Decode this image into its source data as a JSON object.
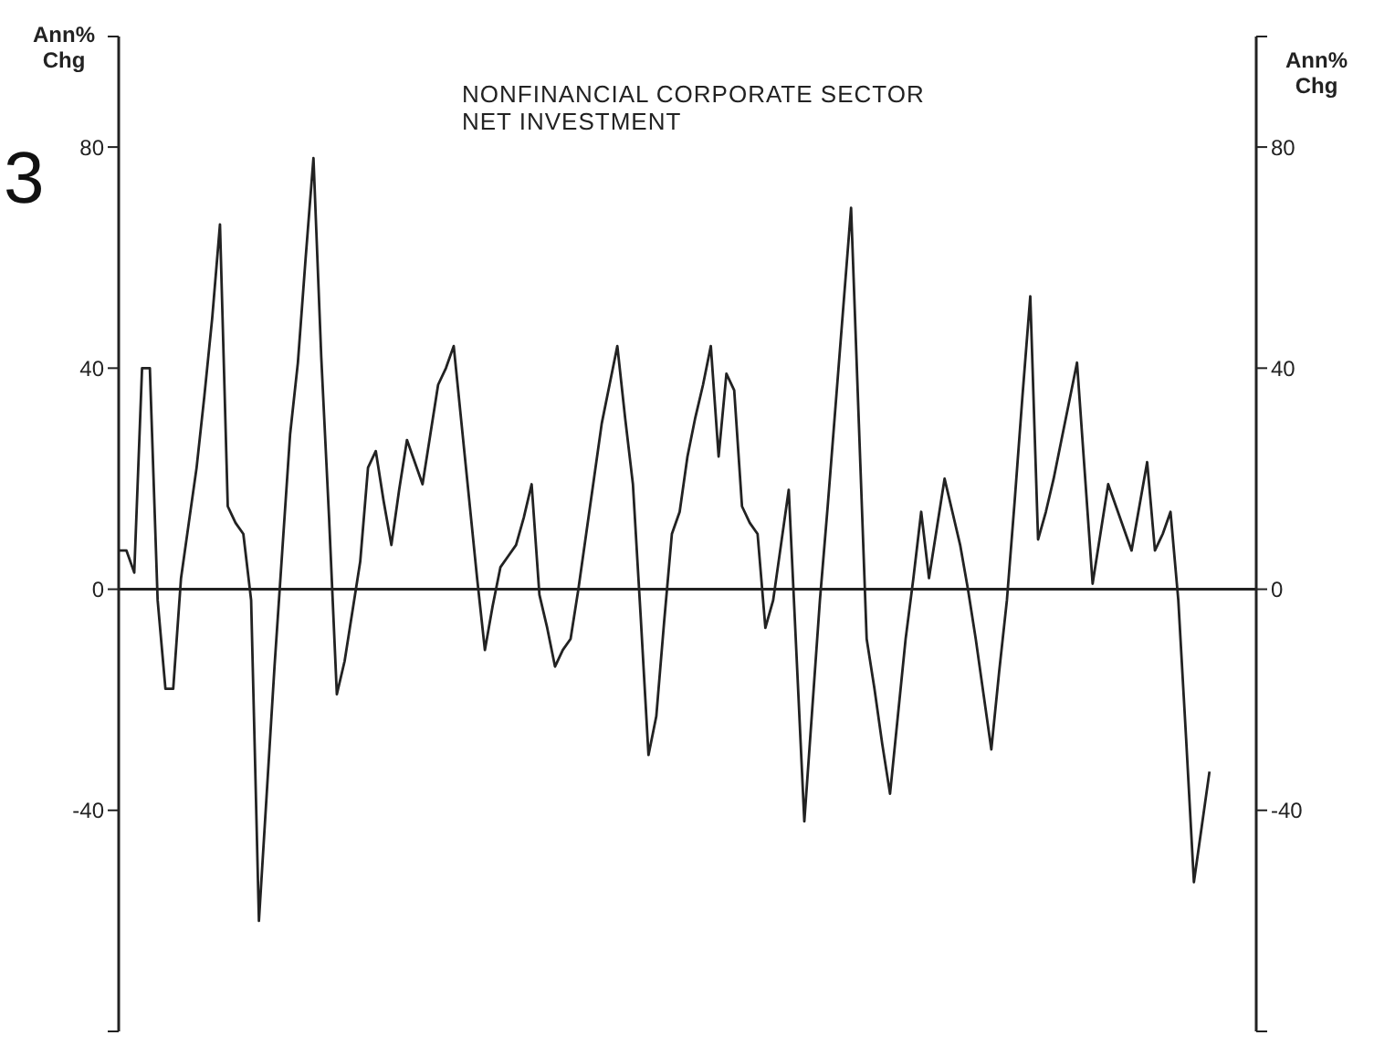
{
  "chart_data": {
    "type": "line",
    "title": "NONFINANCIAL CORPORATE SECTOR",
    "subtitle": "NET INVESTMENT",
    "ylabel": "Ann% Chg",
    "y2label": "Ann% Chg",
    "annotations": [
      "3"
    ],
    "categories": [
      null,
      null,
      null,
      null,
      null,
      null,
      null,
      null,
      null,
      null,
      null,
      null,
      null,
      null,
      null,
      null,
      null,
      null,
      null,
      null,
      null,
      null,
      null,
      null,
      null,
      null,
      null,
      null,
      null,
      null,
      null,
      null,
      null,
      null,
      null,
      null,
      null,
      null,
      null,
      null,
      null,
      null,
      null,
      null,
      null,
      null,
      null,
      null,
      null,
      null,
      null,
      null,
      null,
      null,
      null,
      null,
      null,
      null,
      null,
      null,
      null,
      null,
      null,
      null,
      null,
      null,
      null,
      null,
      null,
      null,
      null,
      null,
      null,
      null,
      null,
      null,
      null,
      null,
      null,
      null,
      null,
      null,
      null,
      null,
      null,
      null,
      null,
      null,
      null,
      null,
      null,
      null,
      null,
      null,
      null,
      null,
      null,
      null,
      null,
      null,
      null,
      null,
      null,
      null,
      null,
      null,
      null,
      null,
      null,
      null,
      null,
      null,
      null,
      null,
      null,
      null,
      null,
      null,
      null,
      null,
      null,
      null,
      null,
      null,
      null,
      null,
      null,
      null,
      null,
      null,
      null,
      null,
      null,
      null,
      null,
      null,
      null,
      null,
      null,
      null,
      null,
      null,
      null,
      null,
      null,
      null,
      null
    ],
    "series": [
      {
        "color": "#222222",
        "values": [
          7,
          7,
          3,
          40,
          40,
          -2,
          -18,
          -18,
          2,
          12,
          22,
          35,
          49,
          66,
          15,
          12,
          10,
          -2,
          -60,
          -37,
          -14,
          7,
          28,
          41,
          60,
          78,
          42,
          13,
          -19,
          -13,
          -4,
          5,
          22,
          25,
          16,
          8,
          18,
          27,
          23,
          19,
          28,
          37,
          40,
          44,
          30,
          16,
          2,
          -11,
          -3,
          4,
          6,
          8,
          13,
          19,
          -1,
          -7,
          -14,
          -11,
          -9,
          0,
          10,
          20,
          30,
          37,
          44,
          31,
          19,
          -5,
          -30,
          -23,
          -6,
          10,
          14,
          24,
          31,
          37,
          44,
          24,
          39,
          36,
          15,
          12,
          10,
          -7,
          -2,
          8,
          18,
          -12,
          -42,
          -22,
          -2,
          15,
          33,
          51,
          69,
          30,
          -9,
          -18,
          -28,
          -37,
          -23,
          -9,
          2,
          14,
          2,
          11,
          20,
          14,
          8,
          0,
          -9,
          -19,
          -29,
          -15,
          -2,
          16,
          35,
          53,
          9,
          14,
          20,
          27,
          34,
          41,
          21,
          1,
          10,
          19,
          15,
          11,
          7,
          15,
          23,
          7,
          10,
          14,
          -2,
          -27,
          -53,
          -43,
          -33,
          null,
          null,
          null,
          null,
          null,
          null
        ]
      }
    ],
    "ylim": [
      -80,
      100
    ],
    "yticks": [
      {
        "value": 100,
        "label": null
      },
      80,
      40,
      0,
      -40,
      {
        "value": -80,
        "label": null
      }
    ],
    "y2lim": [
      -80,
      100
    ],
    "y2ticks": [
      {
        "value": 100,
        "label": null
      },
      80,
      40,
      0,
      -40,
      {
        "value": -80,
        "label": null
      }
    ],
    "ref_lines": [
      {
        "axis": "y",
        "value": 0,
        "color": "#222222"
      }
    ]
  }
}
